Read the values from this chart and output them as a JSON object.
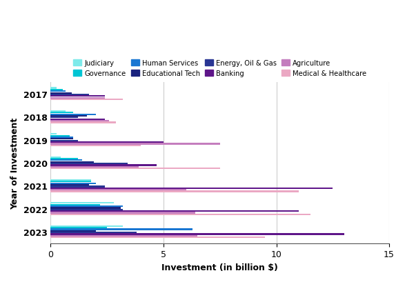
{
  "xlabel": "Investment (in billion $)",
  "ylabel": "Year of Investment",
  "years": [
    "2017",
    "2018",
    "2019",
    "2020",
    "2021",
    "2022",
    "2023"
  ],
  "categories": [
    "Judiciary",
    "Governance",
    "Human Services",
    "Educational Tech",
    "Energy, Oil & Gas",
    "Banking",
    "Agriculture",
    "Medical & Healthcare"
  ],
  "colors": [
    "#7EEAEA",
    "#00C5D4",
    "#1976D2",
    "#1A237E",
    "#283593",
    "#5E1589",
    "#C47DBE",
    "#EBA8C3"
  ],
  "data": {
    "Judiciary": [
      0.25,
      0.65,
      0.25,
      0.45,
      1.8,
      2.8,
      3.2
    ],
    "Governance": [
      0.55,
      1.0,
      0.85,
      1.2,
      1.8,
      2.2,
      2.5
    ],
    "Human Services": [
      0.65,
      2.0,
      1.0,
      1.4,
      2.0,
      3.2,
      6.3
    ],
    "Educational Tech": [
      0.95,
      1.6,
      1.0,
      1.9,
      1.7,
      3.1,
      2.0
    ],
    "Energy, Oil & Gas": [
      1.7,
      1.2,
      1.2,
      3.4,
      2.4,
      3.2,
      3.8
    ],
    "Banking": [
      2.4,
      2.4,
      5.0,
      4.7,
      12.5,
      11.0,
      13.0
    ],
    "Agriculture": [
      2.4,
      2.6,
      7.5,
      3.9,
      6.0,
      6.4,
      6.5
    ],
    "Medical & Healthcare": [
      3.2,
      2.9,
      4.0,
      7.5,
      11.0,
      11.5,
      9.5
    ]
  },
  "xlim": [
    0,
    15
  ],
  "xticks": [
    0,
    5,
    10,
    15
  ],
  "background_color": "#FFFFFF",
  "grid_color": "#CCCCCC"
}
